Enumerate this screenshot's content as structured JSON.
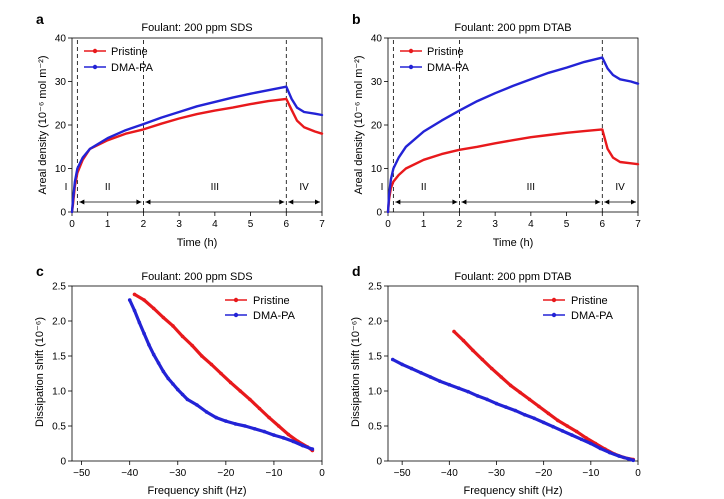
{
  "colors": {
    "pristine": "#e8191c",
    "dma": "#2323d6",
    "axis": "#000000"
  },
  "chart_data": [
    {
      "panel": "a",
      "type": "line",
      "title": "Foulant: 200 ppm SDS",
      "xlabel": "Time (h)",
      "ylabel": "Areal density (10⁻⁶ mol m⁻²)",
      "xlim": [
        0,
        7
      ],
      "ylim": [
        0,
        40
      ],
      "xticks": [
        "0",
        "1",
        "2",
        "3",
        "4",
        "5",
        "6",
        "7"
      ],
      "yticks": [
        "0",
        "10",
        "20",
        "30",
        "40"
      ],
      "stage_lines": [
        0.15,
        2,
        6
      ],
      "stages": [
        {
          "label": "I",
          "x": 0.05
        },
        {
          "label": "II",
          "x": 1.0
        },
        {
          "label": "III",
          "x": 4.0
        },
        {
          "label": "IV",
          "x": 6.5
        }
      ],
      "series": [
        {
          "name": "Pristine",
          "color": "#e8191c",
          "x": [
            0,
            0.03,
            0.08,
            0.15,
            0.3,
            0.5,
            1,
            1.5,
            2,
            2.5,
            3,
            3.5,
            4,
            4.5,
            5,
            5.5,
            6,
            6.15,
            6.3,
            6.5,
            6.8,
            7
          ],
          "y": [
            0,
            2,
            6,
            9,
            12,
            14.5,
            16.5,
            18,
            19,
            20.3,
            21.5,
            22.5,
            23.3,
            24,
            24.8,
            25.5,
            26,
            23.5,
            21,
            19.5,
            18.5,
            18
          ]
        },
        {
          "name": "DMA-PA",
          "color": "#2323d6",
          "x": [
            0,
            0.03,
            0.08,
            0.15,
            0.3,
            0.5,
            1,
            1.5,
            2,
            2.5,
            3,
            3.5,
            4,
            4.5,
            5,
            5.5,
            6,
            6.15,
            6.3,
            6.5,
            6.8,
            7
          ],
          "y": [
            0,
            3,
            7,
            10,
            12.5,
            14.5,
            17,
            18.8,
            20.2,
            21.7,
            23,
            24.3,
            25.3,
            26.3,
            27.2,
            28,
            28.8,
            26,
            24,
            23,
            22.6,
            22.3
          ]
        }
      ],
      "legend": "top-left"
    },
    {
      "panel": "b",
      "type": "line",
      "title": "Foulant: 200 ppm DTAB",
      "xlabel": "Time (h)",
      "ylabel": "Areal density (10⁻⁶ mol m⁻²)",
      "xlim": [
        0,
        7
      ],
      "ylim": [
        0,
        40
      ],
      "xticks": [
        "0",
        "1",
        "2",
        "3",
        "4",
        "5",
        "6",
        "7"
      ],
      "yticks": [
        "0",
        "10",
        "20",
        "30",
        "40"
      ],
      "stage_lines": [
        0.15,
        2,
        6
      ],
      "stages": [
        {
          "label": "I",
          "x": 0.05
        },
        {
          "label": "II",
          "x": 1.0
        },
        {
          "label": "III",
          "x": 4.0
        },
        {
          "label": "IV",
          "x": 6.5
        }
      ],
      "series": [
        {
          "name": "Pristine",
          "color": "#e8191c",
          "x": [
            0,
            0.03,
            0.08,
            0.15,
            0.3,
            0.5,
            1,
            1.5,
            2,
            2.5,
            3,
            3.5,
            4,
            4.5,
            5,
            5.5,
            6,
            6.15,
            6.3,
            6.5,
            6.8,
            7
          ],
          "y": [
            0,
            3,
            5.5,
            7,
            8.5,
            10,
            12,
            13.3,
            14.3,
            15,
            15.8,
            16.5,
            17.2,
            17.7,
            18.2,
            18.6,
            19,
            14.5,
            12.5,
            11.5,
            11.2,
            11
          ]
        },
        {
          "name": "DMA-PA",
          "color": "#2323d6",
          "x": [
            0,
            0.03,
            0.08,
            0.15,
            0.3,
            0.5,
            1,
            1.5,
            2,
            2.5,
            3,
            3.5,
            4,
            4.5,
            5,
            5.5,
            6,
            6.15,
            6.3,
            6.5,
            6.8,
            7
          ],
          "y": [
            0,
            4,
            7.5,
            10,
            12.5,
            15,
            18.5,
            21,
            23.3,
            25.5,
            27.3,
            29,
            30.5,
            32,
            33.2,
            34.5,
            35.5,
            33,
            31.5,
            30.5,
            30,
            29.5
          ]
        }
      ],
      "legend": "top-left"
    },
    {
      "panel": "c",
      "type": "scatter",
      "title": "Foulant: 200 ppm SDS",
      "xlabel": "Frequency shift (Hz)",
      "ylabel": "Dissipation shift (10⁻⁶)",
      "xlim": [
        -52,
        0
      ],
      "ylim": [
        0,
        2.5
      ],
      "xticks": [
        "−50",
        "−40",
        "−30",
        "−20",
        "−10",
        "0"
      ],
      "yticks": [
        "0",
        "0.5",
        "1.0",
        "1.5",
        "2.0",
        "2.5"
      ],
      "series": [
        {
          "name": "Pristine",
          "color": "#e8191c",
          "x": [
            -39,
            -37,
            -35,
            -33,
            -31,
            -29,
            -27,
            -25,
            -23,
            -21,
            -19,
            -17,
            -15,
            -13,
            -11,
            -9,
            -7,
            -5,
            -3,
            -2
          ],
          "y": [
            2.38,
            2.3,
            2.18,
            2.05,
            1.93,
            1.78,
            1.65,
            1.5,
            1.38,
            1.25,
            1.12,
            1.0,
            0.88,
            0.75,
            0.62,
            0.5,
            0.38,
            0.28,
            0.2,
            0.15
          ]
        },
        {
          "name": "DMA-PA",
          "color": "#2323d6",
          "x": [
            -40,
            -39,
            -38,
            -37,
            -36,
            -35,
            -34,
            -33,
            -32,
            -31,
            -30,
            -29,
            -28,
            -26,
            -24,
            -22,
            -20,
            -18,
            -16,
            -14,
            -12,
            -10,
            -8,
            -6,
            -4,
            -2
          ],
          "y": [
            2.3,
            2.15,
            1.98,
            1.82,
            1.66,
            1.52,
            1.4,
            1.28,
            1.18,
            1.1,
            1.02,
            0.95,
            0.88,
            0.8,
            0.7,
            0.62,
            0.57,
            0.53,
            0.5,
            0.46,
            0.42,
            0.37,
            0.33,
            0.28,
            0.22,
            0.17
          ]
        }
      ],
      "legend": "top-right"
    },
    {
      "panel": "d",
      "type": "scatter",
      "title": "Foulant: 200 ppm DTAB",
      "xlabel": "Frequency shift (Hz)",
      "ylabel": "Dissipation shift (10⁻⁶)",
      "xlim": [
        -53,
        0
      ],
      "ylim": [
        0,
        2.5
      ],
      "xticks": [
        "−50",
        "−40",
        "−30",
        "−20",
        "−10",
        "0"
      ],
      "yticks": [
        "0",
        "0.5",
        "1.0",
        "1.5",
        "2.0",
        "2.5"
      ],
      "series": [
        {
          "name": "Pristine",
          "color": "#e8191c",
          "x": [
            -39,
            -37,
            -35,
            -33,
            -31,
            -29,
            -27,
            -25,
            -23,
            -21,
            -19,
            -17,
            -15,
            -13,
            -11,
            -9,
            -7,
            -5,
            -3,
            -1
          ],
          "y": [
            1.85,
            1.72,
            1.58,
            1.45,
            1.32,
            1.2,
            1.08,
            0.98,
            0.88,
            0.78,
            0.68,
            0.58,
            0.5,
            0.42,
            0.33,
            0.25,
            0.17,
            0.1,
            0.05,
            0.02
          ]
        },
        {
          "name": "DMA-PA",
          "color": "#2323d6",
          "x": [
            -52,
            -50,
            -48,
            -46,
            -44,
            -42,
            -40,
            -38,
            -36,
            -34,
            -32,
            -30,
            -28,
            -26,
            -24,
            -22,
            -20,
            -18,
            -16,
            -14,
            -12,
            -10,
            -8,
            -6,
            -4,
            -2,
            -1
          ],
          "y": [
            1.45,
            1.38,
            1.32,
            1.26,
            1.2,
            1.14,
            1.09,
            1.04,
            0.99,
            0.93,
            0.88,
            0.82,
            0.77,
            0.72,
            0.66,
            0.61,
            0.55,
            0.49,
            0.43,
            0.37,
            0.31,
            0.25,
            0.18,
            0.12,
            0.07,
            0.03,
            0.01
          ]
        }
      ],
      "legend": "top-right"
    }
  ]
}
